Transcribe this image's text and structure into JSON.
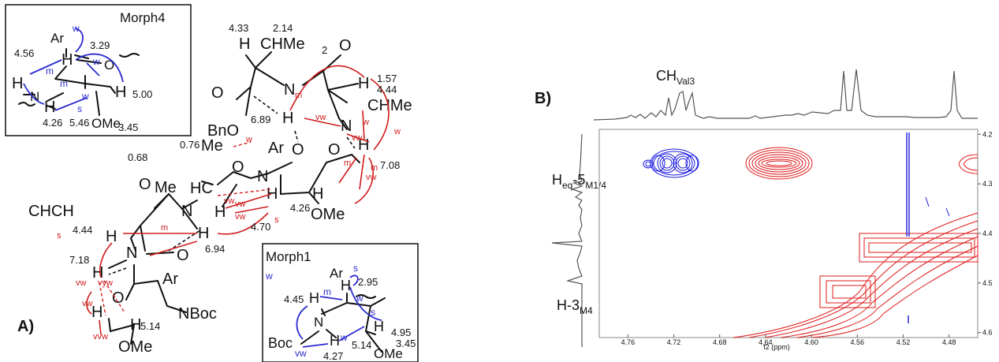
{
  "panel_a": {
    "label": "A)",
    "morph4": {
      "title": "Morph4",
      "labels": {
        "ar": "Ar",
        "h": "H",
        "o": "O",
        "n": "N",
        "ome": "OMe"
      },
      "shifts": [
        "4.56",
        "3.29",
        "5.00",
        "4.26",
        "5.46",
        "3.45"
      ],
      "noe": [
        "w",
        "m",
        "w",
        "m",
        "s",
        "w"
      ]
    },
    "morph1": {
      "title": "Morph1",
      "labels": {
        "ar": "Ar",
        "h": "H",
        "n": "N",
        "boc": "Boc",
        "ome": "OMe"
      },
      "shifts": [
        "2.95",
        "4.45",
        "4.95",
        "5.14",
        "4.27",
        "3.45"
      ],
      "noe": [
        "s",
        "w",
        "m",
        "w",
        "s",
        "w",
        "vw"
      ]
    },
    "main": {
      "groups": [
        "CHMe",
        "2",
        "BnO",
        "O",
        "O",
        "N",
        "H",
        "CH",
        "CHMe",
        "Ar",
        "Me",
        "HC",
        "N",
        "O",
        "H",
        "OMe",
        "Me",
        "CHCH",
        "N",
        "H",
        "H",
        "N",
        "O",
        "O",
        "Ar",
        "NBoc",
        "OMe",
        "H",
        "H",
        "H",
        "H",
        "H",
        "H",
        "H"
      ],
      "shifts": [
        "4.33",
        "2.14",
        "4.44",
        "1.57",
        "6.89",
        "7.08",
        "0.76",
        "0.68",
        "4.26",
        "4.70",
        "4.44",
        "6.94",
        "7.18",
        "5.14"
      ],
      "noe_red": [
        "m",
        "vw",
        "w",
        "w",
        "vw",
        "m",
        "vw",
        "w",
        "m",
        "vw",
        "vw",
        "m",
        "s",
        "vw",
        "vyw",
        "vvw",
        "s",
        "vw",
        "vw"
      ]
    }
  },
  "panel_b": {
    "label": "B)",
    "peak_ch": "CH",
    "peak_ch_sub": "Val3",
    "peak_heq": "H",
    "peak_heq_sub1": "eq",
    "peak_heq_mid": "-5",
    "peak_heq_sub2": "M1/4",
    "peak_h3": "H-3",
    "peak_h3_sub": "M4",
    "x_axis_label": "f2 (ppm)",
    "x_ticks": [
      "4.76",
      "4.72",
      "4.68",
      "4.64",
      "4.60",
      "4.56",
      "4.52",
      "4.48"
    ],
    "y_ticks": [
      "4.2",
      "4.3",
      "4.4",
      "4.5",
      "4.6"
    ]
  }
}
